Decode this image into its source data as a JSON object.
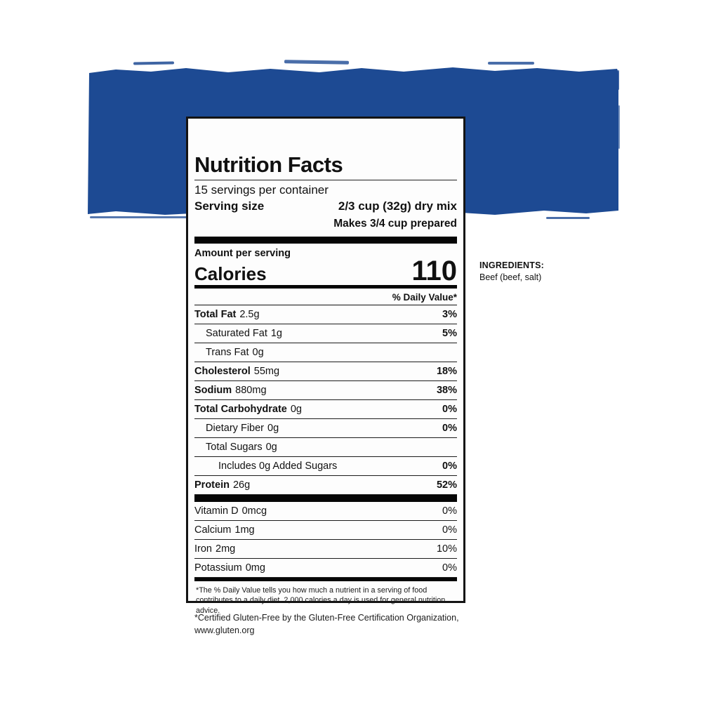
{
  "colors": {
    "accent": "#1d4a93",
    "bar": "#060606",
    "label_bg": "#fdfdfd"
  },
  "label": {
    "title": "Nutrition Facts",
    "servings_per_container": "15 servings per container",
    "serving_size_label": "Serving size",
    "serving_size_value": "2/3 cup (32g) dry mix",
    "serving_note": "Makes 3/4 cup prepared",
    "amount_per_serving": "Amount per serving",
    "calories_label": "Calories",
    "calories_value": "110",
    "daily_value_header": "% Daily Value*",
    "nutrients": [
      {
        "name": "Total Fat",
        "amount": "2.5g",
        "dv": "3%",
        "bold": true,
        "dv_bold": true,
        "indent": 0
      },
      {
        "name": "Saturated Fat",
        "amount": "1g",
        "dv": "5%",
        "bold": false,
        "dv_bold": true,
        "indent": 1
      },
      {
        "name": "Trans Fat",
        "amount": "0g",
        "dv": "",
        "bold": false,
        "dv_bold": false,
        "indent": 1
      },
      {
        "name": "Cholesterol",
        "amount": "55mg",
        "dv": "18%",
        "bold": true,
        "dv_bold": true,
        "indent": 0
      },
      {
        "name": "Sodium",
        "amount": "880mg",
        "dv": "38%",
        "bold": true,
        "dv_bold": true,
        "indent": 0
      },
      {
        "name": "Total Carbohydrate",
        "amount": "0g",
        "dv": "0%",
        "bold": true,
        "dv_bold": true,
        "indent": 0
      },
      {
        "name": "Dietary Fiber",
        "amount": "0g",
        "dv": "0%",
        "bold": false,
        "dv_bold": true,
        "indent": 1
      },
      {
        "name": "Total Sugars",
        "amount": "0g",
        "dv": "",
        "bold": false,
        "dv_bold": false,
        "indent": 1
      },
      {
        "name": "Includes 0g Added Sugars",
        "amount": "",
        "dv": "0%",
        "bold": false,
        "dv_bold": true,
        "indent": 2
      },
      {
        "name": "Protein",
        "amount": "26g",
        "dv": "52%",
        "bold": true,
        "dv_bold": true,
        "indent": 0
      }
    ],
    "vitamins": [
      {
        "name": "Vitamin D",
        "amount": "0mcg",
        "dv": "0%",
        "bold": false,
        "dv_bold": false,
        "indent": 0
      },
      {
        "name": "Calcium",
        "amount": "1mg",
        "dv": "0%",
        "bold": false,
        "dv_bold": false,
        "indent": 0
      },
      {
        "name": "Iron",
        "amount": "2mg",
        "dv": "10%",
        "bold": false,
        "dv_bold": false,
        "indent": 0
      },
      {
        "name": "Potassium",
        "amount": "0mg",
        "dv": "0%",
        "bold": false,
        "dv_bold": false,
        "indent": 0
      }
    ],
    "footnote": "*The % Daily Value tells you how much a nutrient in a serving of food contributes to a daily diet. 2,000 calories a day is used for general nutrition advice."
  },
  "ingredients": {
    "heading": "INGREDIENTS:",
    "text": "Beef (beef, salt)"
  },
  "certification_line1": "*Certified Gluten-Free by the Gluten-Free Certification Organization,",
  "certification_line2": "www.gluten.org"
}
